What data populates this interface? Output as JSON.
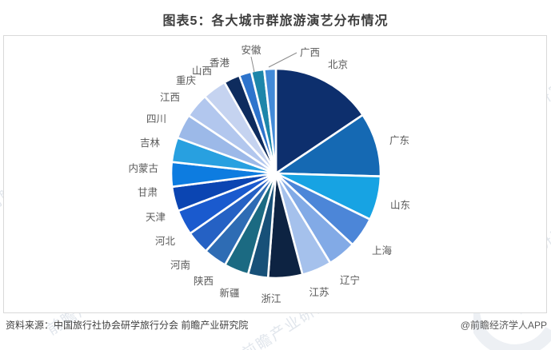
{
  "title": "图表5：各大城市群旅游演艺分布情况",
  "footer": {
    "source": "资料来源：中国旅行社协会研学旅行分会 前瞻产业研究院",
    "credit": "@前瞻经济学人APP"
  },
  "watermark": {
    "text": "前瞻产业研究院"
  },
  "chart_data": {
    "type": "pie",
    "title": "图表5：各大城市群旅游演艺分布情况",
    "legend_position": "none (slices labelled directly around pie)",
    "start_angle_deg": 0,
    "direction": "clockwise",
    "value_note": "no numeric labels shown in chart; values are share-of-circle percentages estimated from slice angles",
    "slices": [
      {
        "label": "北京",
        "value": 15.6,
        "color": "#0d2f6d"
      },
      {
        "label": "广东",
        "value": 9.9,
        "color": "#1569b3"
      },
      {
        "label": "山东",
        "value": 6.8,
        "color": "#17a3e3"
      },
      {
        "label": "上海",
        "value": 4.7,
        "color": "#4c86d8"
      },
      {
        "label": "辽宁",
        "value": 4.4,
        "color": "#82aae6"
      },
      {
        "label": "江苏",
        "value": 4.6,
        "color": "#a5c1ec"
      },
      {
        "label": "浙江",
        "value": 5.3,
        "color": "#0d2342"
      },
      {
        "label": "新疆",
        "value": 3.1,
        "color": "#175078"
      },
      {
        "label": "陕西",
        "value": 3.8,
        "color": "#1b6a82"
      },
      {
        "label": "河南",
        "value": 3.6,
        "color": "#2e6cb4"
      },
      {
        "label": "河北",
        "value": 3.6,
        "color": "#2561c4"
      },
      {
        "label": "天津",
        "value": 3.9,
        "color": "#1a5ace"
      },
      {
        "label": "甘肃",
        "value": 3.8,
        "color": "#0b45b2"
      },
      {
        "label": "内蒙古",
        "value": 3.8,
        "color": "#0d7ce0"
      },
      {
        "label": "吉林",
        "value": 3.8,
        "color": "#28a0e0"
      },
      {
        "label": "四川",
        "value": 3.8,
        "color": "#9cb9e8"
      },
      {
        "label": "江西",
        "value": 3.8,
        "color": "#b2c7ee"
      },
      {
        "label": "重庆",
        "value": 3.7,
        "color": "#c5d3f0"
      },
      {
        "label": "山西",
        "value": 2.5,
        "color": "#0e2c5e"
      },
      {
        "label": "香港",
        "value": 1.9,
        "color": "#2e74cc"
      },
      {
        "label": "安徽",
        "value": 2.0,
        "color": "#1d86aa"
      },
      {
        "label": "广西",
        "value": 1.8,
        "color": "#428ad8"
      }
    ]
  }
}
